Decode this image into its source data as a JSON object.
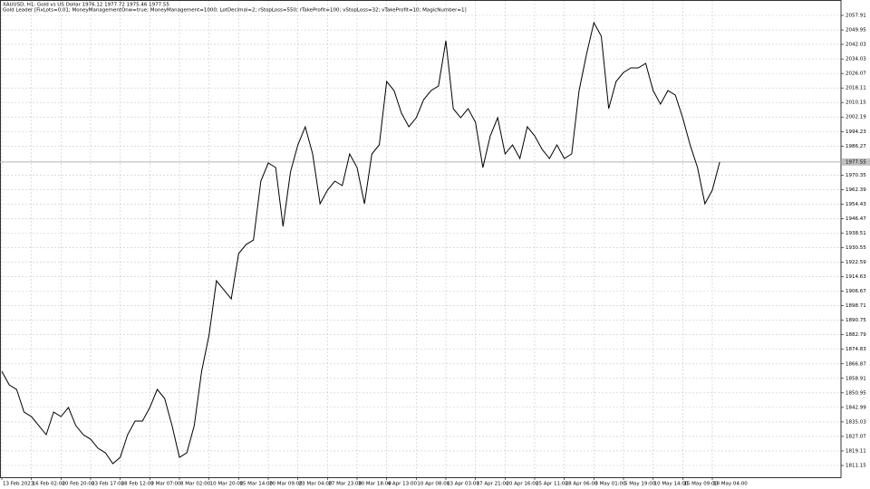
{
  "chart_data": {
    "type": "line",
    "title": "XAUUSD, H1:  Gold vs US Dollar  1976.12 1977.72 1975.46 1977.55",
    "subtitle": "Gold Leader [FixLots=0.01; MoneyManagementOnw=true; MoneyManagement=1000; LotDecimal=2; rStopLoss=550; rTakeProfit=100; vStopLoss=32; vTakeProfit=10; MagicNumber=1]",
    "categories": [
      "13 Feb 2023",
      null,
      null,
      null,
      "16 Feb 02:00",
      null,
      null,
      null,
      "20 Feb 20:00",
      null,
      null,
      null,
      "23 Feb 17:00",
      null,
      null,
      null,
      "28 Feb 12:00",
      null,
      null,
      null,
      "3 Mar 07:00",
      null,
      null,
      null,
      "8 Mar 02:00",
      null,
      null,
      null,
      "10 Mar 20:00",
      null,
      null,
      null,
      "15 Mar 14:00",
      null,
      null,
      null,
      "20 Mar 09:00",
      null,
      null,
      null,
      "23 Mar 04:00",
      null,
      null,
      null,
      "27 Mar 23:00",
      null,
      null,
      null,
      "30 Mar 18:00",
      null,
      null,
      null,
      "4 Apr 13:00",
      null,
      null,
      null,
      "10 Apr 08:00",
      null,
      null,
      null,
      "13 Apr 03:00",
      null,
      null,
      null,
      "17 Apr 21:00",
      null,
      null,
      null,
      "20 Apr 16:00",
      null,
      null,
      null,
      "25 Apr 11:00",
      null,
      null,
      null,
      "28 Apr 06:00",
      null,
      null,
      null,
      "3 May 01:00",
      null,
      null,
      null,
      "5 May 19:00",
      null,
      null,
      null,
      "10 May 14:00",
      null,
      null,
      null,
      "15 May 09:00",
      null,
      null,
      null,
      "18 May 04:00",
      null
    ],
    "series": [
      {
        "name": "XAUUSD",
        "color": "#000000",
        "values": [
          1862.78,
          1855.33,
          1852.85,
          1840.43,
          1837.95,
          1832.99,
          1828.02,
          1840.43,
          1837.95,
          1842.92,
          1832.99,
          1828.02,
          1825.54,
          1820.57,
          1818.09,
          1812.13,
          1815.61,
          1828.02,
          1835.47,
          1835.47,
          1842.92,
          1852.85,
          1847.88,
          1832.99,
          1815.61,
          1818.09,
          1832.99,
          1862.78,
          1882.64,
          1912.43,
          1907.46,
          1902.5,
          1927.33,
          1932.29,
          1934.77,
          1967.05,
          1976.98,
          1974.5,
          1942.22,
          1972.01,
          1986.91,
          1996.84,
          1981.94,
          1954.63,
          1962.08,
          1967.05,
          1964.56,
          1981.94,
          1974.5,
          1954.63,
          1981.94,
          1986.91,
          2021.66,
          2016.7,
          2004.29,
          1996.84,
          2001.8,
          2011.73,
          2016.7,
          2019.18,
          2044.01,
          2006.77,
          2001.8,
          2006.77,
          1999.32,
          1974.5,
          1991.87,
          2001.8,
          1981.94,
          1986.91,
          1979.46,
          1996.84,
          1991.87,
          1984.43,
          1979.46,
          1986.91,
          1979.46,
          1981.94,
          2016.7,
          2036.56,
          2053.94,
          2046.49,
          2006.77,
          2021.66,
          2026.63,
          2029.11,
          2029.11,
          2031.59,
          2016.7,
          2009.25,
          2016.7,
          2014.22,
          2001.8,
          1986.91,
          1974.5,
          1954.63,
          1962.08,
          1977.55
        ]
      }
    ],
    "current_price": 1977.55,
    "ylim": [
      1804.7,
      2066.35
    ],
    "yticks": [
      2057.91,
      2049.95,
      2042.03,
      2034.03,
      2026.07,
      2018.11,
      2010.15,
      2002.19,
      1994.23,
      1986.27,
      1970.35,
      1962.39,
      1954.43,
      1946.47,
      1938.51,
      1930.55,
      1922.59,
      1914.63,
      1906.67,
      1898.71,
      1890.75,
      1882.79,
      1874.83,
      1866.87,
      1858.91,
      1850.95,
      1842.99,
      1835.03,
      1827.07,
      1819.11,
      1811.15
    ],
    "grid": true
  }
}
